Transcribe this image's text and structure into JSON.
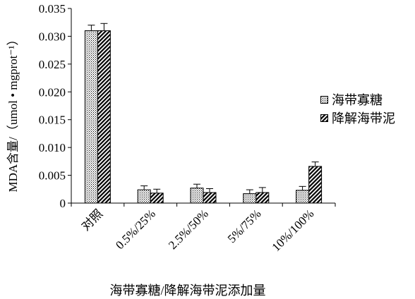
{
  "chart_data": {
    "type": "bar",
    "title": "",
    "xlabel": "海带寡糖/降解海带泥添加量",
    "ylabel": "MDA含量/（umol • mgprot⁻¹）",
    "ylim": [
      0,
      0.035
    ],
    "yticks": [
      "0",
      "0.005",
      "0.010",
      "0.015",
      "0.020",
      "0.025",
      "0.030",
      "0.035"
    ],
    "categories": [
      "对照",
      "0.5%/25%",
      "2.5%/50%",
      "5%/75%",
      "10%/100%"
    ],
    "series": [
      {
        "name": "海带寡糖",
        "values": [
          0.031,
          0.0024,
          0.0027,
          0.0017,
          0.0023
        ],
        "errors": [
          0.001,
          0.0007,
          0.0007,
          0.0007,
          0.0007
        ],
        "pattern": "dots"
      },
      {
        "name": "降解海带泥",
        "values": [
          0.031,
          0.0018,
          0.0019,
          0.0019,
          0.0066
        ],
        "errors": [
          0.0013,
          0.0007,
          0.0007,
          0.0009,
          0.0008
        ],
        "pattern": "hatch"
      }
    ],
    "legend_position": "right",
    "grid": false
  }
}
